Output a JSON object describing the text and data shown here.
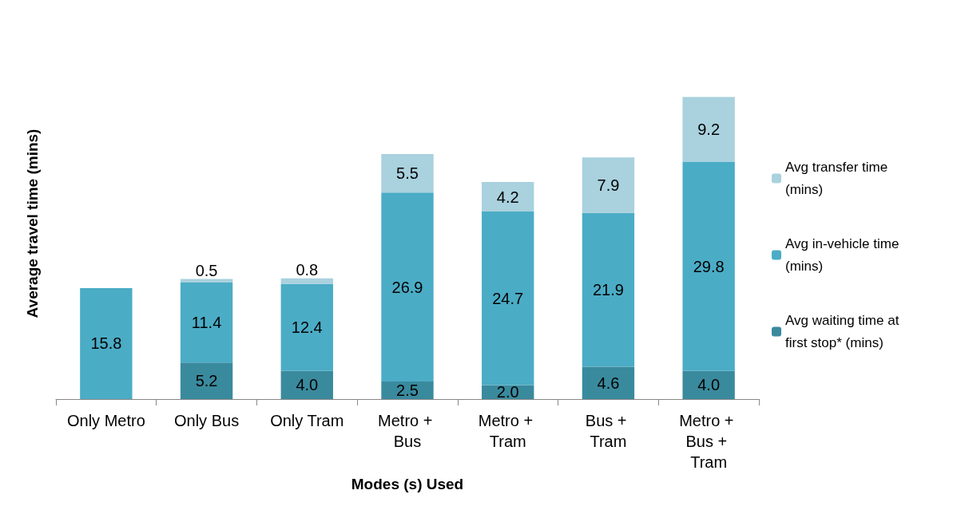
{
  "chart_data": {
    "type": "bar",
    "stacked": true,
    "xlabel": "Modes (s) Used",
    "ylabel": "Average travel time (mins)",
    "categories": [
      "Only Metro",
      "Only Bus",
      "Only Tram",
      "Metro + Bus",
      "Metro + Tram",
      "Bus + Tram",
      "Metro + Bus + Tram"
    ],
    "series": [
      {
        "name": "Avg waiting time at first stop* (mins)",
        "color": "#3a8a9e",
        "values": [
          null,
          5.2,
          4.0,
          2.5,
          2.0,
          4.6,
          4.0
        ],
        "value_labels": [
          null,
          "5.2",
          "4.0",
          "2.5",
          "2.0",
          "4.6",
          "4.0"
        ]
      },
      {
        "name": "Avg in-vehicle time (mins)",
        "color": "#4bacc6",
        "values": [
          15.8,
          11.4,
          12.4,
          26.9,
          24.7,
          21.9,
          29.8
        ],
        "value_labels": [
          "15.8",
          "11.4",
          "12.4",
          "26.9",
          "24.7",
          "21.9",
          "29.8"
        ]
      },
      {
        "name": "Avg transfer time (mins)",
        "color": "#a9d1de",
        "values": [
          null,
          0.5,
          0.8,
          5.5,
          4.2,
          7.9,
          9.2
        ],
        "value_labels": [
          null,
          "0.5",
          "0.8",
          "5.5",
          "4.2",
          "7.9",
          "9.2"
        ]
      }
    ],
    "grid": false,
    "legend": "right"
  }
}
